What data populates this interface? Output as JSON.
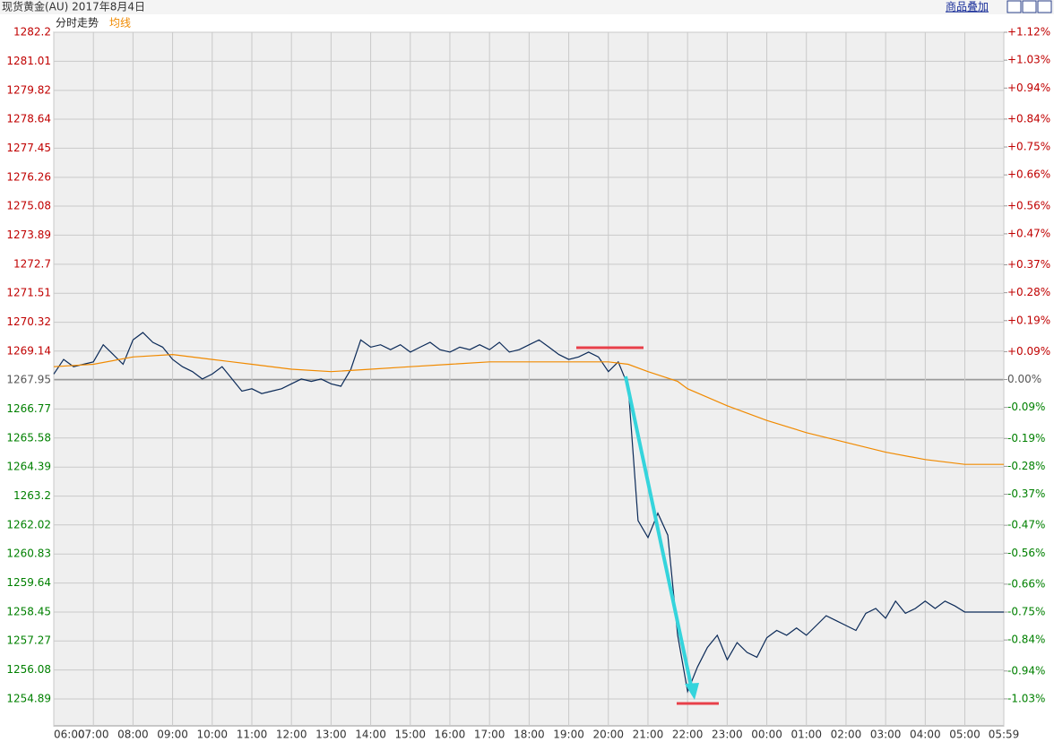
{
  "toolbar_link": "商品叠加",
  "chart_data": {
    "type": "line",
    "title": "现货黄金(AU) 2017年8月4日",
    "xlim": [
      "06:00",
      "05:59"
    ],
    "xticks": [
      "06:00",
      "07:00",
      "08:00",
      "09:00",
      "10:00",
      "11:00",
      "12:00",
      "13:00",
      "14:00",
      "15:00",
      "16:00",
      "17:00",
      "18:00",
      "19:00",
      "20:00",
      "21:00",
      "22:00",
      "23:00",
      "00:00",
      "01:00",
      "02:00",
      "03:00",
      "04:00",
      "05:00",
      "05:59"
    ],
    "ylim": [
      1253.79,
      1282.2
    ],
    "yticks": [
      1282.2,
      1281.01,
      1279.82,
      1278.64,
      1277.45,
      1276.26,
      1275.08,
      1273.89,
      1272.7,
      1271.51,
      1270.32,
      1269.14,
      1267.95,
      1266.77,
      1265.58,
      1264.39,
      1263.2,
      1262.02,
      1260.83,
      1259.64,
      1258.45,
      1257.27,
      1256.08,
      1254.89
    ],
    "y2lim": [
      -1.117,
      1.12
    ],
    "y2ticks": [
      {
        "value": 1.12,
        "label": "+1.12%"
      },
      {
        "value": 1.03,
        "label": "+1.03%"
      },
      {
        "value": 0.94,
        "label": "+0.94%"
      },
      {
        "value": 0.84,
        "label": "+0.84%"
      },
      {
        "value": 0.75,
        "label": "+0.75%"
      },
      {
        "value": 0.66,
        "label": "+0.66%"
      },
      {
        "value": 0.56,
        "label": "+0.56%"
      },
      {
        "value": 0.47,
        "label": "+0.47%"
      },
      {
        "value": 0.37,
        "label": "+0.37%"
      },
      {
        "value": 0.28,
        "label": "+0.28%"
      },
      {
        "value": 0.19,
        "label": "+0.19%"
      },
      {
        "value": 0.09,
        "label": "+0.09%"
      },
      {
        "value": 0,
        "label": "0.00%"
      },
      {
        "value": -0.09,
        "label": "-0.09%"
      },
      {
        "value": -0.19,
        "label": "-0.19%"
      },
      {
        "value": -0.28,
        "label": "-0.28%"
      },
      {
        "value": -0.37,
        "label": "-0.37%"
      },
      {
        "value": -0.47,
        "label": "-0.47%"
      },
      {
        "value": -0.56,
        "label": "-0.56%"
      },
      {
        "value": -0.66,
        "label": "-0.66%"
      },
      {
        "value": -0.75,
        "label": "-0.75%"
      },
      {
        "value": -0.84,
        "label": "-0.84%"
      },
      {
        "value": -0.94,
        "label": "-0.94%"
      },
      {
        "value": -1.03,
        "label": "-1.03%"
      }
    ],
    "grid": true,
    "series": [
      {
        "name": "分时走势",
        "color": "#0b2a58",
        "x": [
          "06:00",
          "06:15",
          "06:30",
          "06:45",
          "07:00",
          "07:15",
          "07:30",
          "07:45",
          "08:00",
          "08:15",
          "08:30",
          "08:45",
          "09:00",
          "09:15",
          "09:30",
          "09:45",
          "10:00",
          "10:15",
          "10:30",
          "10:45",
          "11:00",
          "11:15",
          "11:30",
          "11:45",
          "12:00",
          "12:15",
          "12:30",
          "12:45",
          "13:00",
          "13:15",
          "13:30",
          "13:45",
          "14:00",
          "14:15",
          "14:30",
          "14:45",
          "15:00",
          "15:15",
          "15:30",
          "15:45",
          "16:00",
          "16:15",
          "16:30",
          "16:45",
          "17:00",
          "17:15",
          "17:30",
          "17:45",
          "18:00",
          "18:15",
          "18:30",
          "18:45",
          "19:00",
          "19:15",
          "19:30",
          "19:45",
          "20:00",
          "20:15",
          "20:30",
          "20:45",
          "21:00",
          "21:15",
          "21:30",
          "21:45",
          "22:00",
          "22:15",
          "22:30",
          "22:45",
          "23:00",
          "23:15",
          "23:30",
          "23:45",
          "00:00",
          "00:15",
          "00:30",
          "00:45",
          "01:00",
          "01:15",
          "01:30",
          "01:45",
          "02:00",
          "02:15",
          "02:30",
          "02:45",
          "03:00",
          "03:15",
          "03:30",
          "03:45",
          "04:00",
          "04:15",
          "04:30",
          "04:45",
          "05:00",
          "05:59"
        ],
        "values": [
          1268.2,
          1268.8,
          1268.5,
          1268.6,
          1268.7,
          1269.4,
          1269.0,
          1268.6,
          1269.6,
          1269.9,
          1269.5,
          1269.3,
          1268.8,
          1268.5,
          1268.3,
          1268.0,
          1268.2,
          1268.5,
          1268.0,
          1267.5,
          1267.6,
          1267.4,
          1267.5,
          1267.6,
          1267.8,
          1268.0,
          1267.9,
          1268.0,
          1267.8,
          1267.7,
          1268.4,
          1269.6,
          1269.3,
          1269.4,
          1269.2,
          1269.4,
          1269.1,
          1269.3,
          1269.5,
          1269.2,
          1269.1,
          1269.3,
          1269.2,
          1269.4,
          1269.2,
          1269.5,
          1269.1,
          1269.2,
          1269.4,
          1269.6,
          1269.3,
          1269.0,
          1268.8,
          1268.9,
          1269.1,
          1268.9,
          1268.3,
          1268.7,
          1267.7,
          1262.2,
          1261.5,
          1262.5,
          1261.6,
          1257.5,
          1255.2,
          1256.2,
          1257.0,
          1257.5,
          1256.5,
          1257.2,
          1256.8,
          1256.6,
          1257.4,
          1257.7,
          1257.5,
          1257.8,
          1257.5,
          1257.9,
          1258.3,
          1258.1,
          1257.9,
          1257.7,
          1258.4,
          1258.6,
          1258.2,
          1258.9,
          1258.4,
          1258.6,
          1258.9,
          1258.6,
          1258.9,
          1258.7,
          1258.45,
          1258.45
        ]
      },
      {
        "name": "均线",
        "color": "#f08a00",
        "x": [
          "06:00",
          "07:00",
          "08:00",
          "09:00",
          "10:00",
          "11:00",
          "12:00",
          "13:00",
          "14:00",
          "15:00",
          "16:00",
          "17:00",
          "18:00",
          "19:00",
          "20:00",
          "20:30",
          "21:00",
          "21:45",
          "22:00",
          "23:00",
          "00:00",
          "01:00",
          "02:00",
          "03:00",
          "04:00",
          "05:00",
          "05:59"
        ],
        "values": [
          1268.5,
          1268.6,
          1268.9,
          1269.0,
          1268.8,
          1268.6,
          1268.4,
          1268.3,
          1268.4,
          1268.5,
          1268.6,
          1268.7,
          1268.7,
          1268.7,
          1268.7,
          1268.6,
          1268.3,
          1267.9,
          1267.6,
          1266.9,
          1266.3,
          1265.8,
          1265.4,
          1265.0,
          1264.7,
          1264.5,
          1264.5
        ]
      }
    ]
  }
}
